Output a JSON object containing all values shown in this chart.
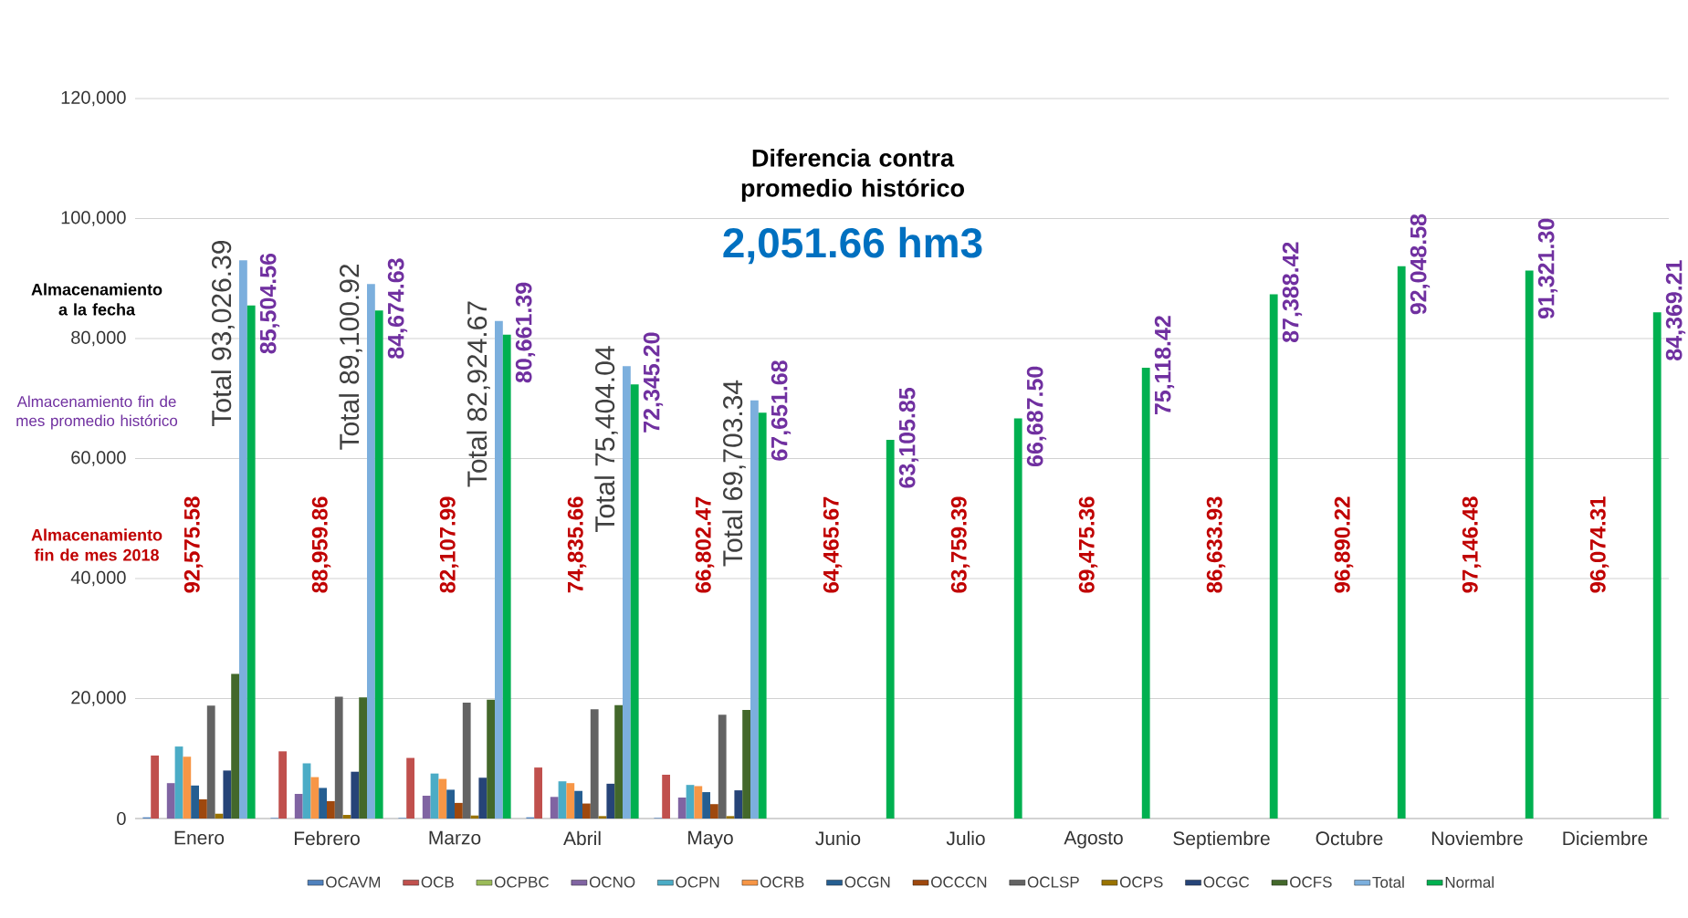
{
  "chart_data": {
    "type": "bar",
    "title": "Diferencia contra promedio histórico",
    "subtitle": "2,051.66 hm3",
    "categories": [
      "Enero",
      "Febrero",
      "Marzo",
      "Abril",
      "Mayo",
      "Junio",
      "Julio",
      "Agosto",
      "Septiembre",
      "Octubre",
      "Noviembre",
      "Diciembre"
    ],
    "series": [
      {
        "name": "OCAVM",
        "color": "#4f81bd",
        "values": [
          200,
          100,
          100,
          200,
          100,
          null,
          null,
          null,
          null,
          null,
          null,
          null
        ]
      },
      {
        "name": "OCB",
        "color": "#c0504d",
        "values": [
          10500,
          11200,
          10100,
          8500,
          7300,
          null,
          null,
          null,
          null,
          null,
          null,
          null
        ]
      },
      {
        "name": "OCPBC",
        "color": "#9bbb59",
        "values": [
          0,
          0,
          0,
          0,
          0,
          null,
          null,
          null,
          null,
          null,
          null,
          null
        ]
      },
      {
        "name": "OCNO",
        "color": "#8064a2",
        "values": [
          5900,
          4100,
          3800,
          3600,
          3500,
          null,
          null,
          null,
          null,
          null,
          null,
          null
        ]
      },
      {
        "name": "OCPN",
        "color": "#4bacc6",
        "values": [
          12000,
          9200,
          7500,
          6200,
          5600,
          null,
          null,
          null,
          null,
          null,
          null,
          null
        ]
      },
      {
        "name": "OCRB",
        "color": "#f79646",
        "values": [
          10300,
          6900,
          6600,
          5900,
          5400,
          null,
          null,
          null,
          null,
          null,
          null,
          null
        ]
      },
      {
        "name": "OCGN",
        "color": "#255e91",
        "values": [
          5500,
          5100,
          4800,
          4600,
          4400,
          null,
          null,
          null,
          null,
          null,
          null,
          null
        ]
      },
      {
        "name": "OCCCN",
        "color": "#9e480e",
        "values": [
          3200,
          2900,
          2600,
          2500,
          2400,
          null,
          null,
          null,
          null,
          null,
          null,
          null
        ]
      },
      {
        "name": "OCLSP",
        "color": "#636363",
        "values": [
          18800,
          20300,
          19300,
          18200,
          17300,
          null,
          null,
          null,
          null,
          null,
          null,
          null
        ]
      },
      {
        "name": "OCPS",
        "color": "#997300",
        "values": [
          800,
          600,
          500,
          400,
          400,
          null,
          null,
          null,
          null,
          null,
          null,
          null
        ]
      },
      {
        "name": "OCGC",
        "color": "#264478",
        "values": [
          8000,
          7800,
          6800,
          5800,
          4700,
          null,
          null,
          null,
          null,
          null,
          null,
          null
        ]
      },
      {
        "name": "OCFS",
        "color": "#43682b",
        "values": [
          24100,
          20200,
          19800,
          18900,
          18100,
          null,
          null,
          null,
          null,
          null,
          null,
          null
        ]
      },
      {
        "name": "Total",
        "color": "#7cafdd",
        "values": [
          93026.39,
          89100.92,
          82924.67,
          75404.04,
          69703.34,
          null,
          null,
          null,
          null,
          null,
          null,
          null
        ],
        "value_labels": [
          "Total 93,026.39",
          "Total 89,100.92",
          "Total 82,924.67",
          "Total 75,404.04",
          "Total 69,703.34",
          null,
          null,
          null,
          null,
          null,
          null,
          null
        ]
      },
      {
        "name": "Normal",
        "color": "#00b050",
        "values": [
          85504.56,
          84674.63,
          80661.39,
          72345.2,
          67651.68,
          63105.85,
          66687.5,
          75118.42,
          87388.42,
          92048.58,
          91321.3,
          84369.21
        ],
        "value_labels": [
          "85,504.56",
          "84,674.63",
          "80,661.39",
          "72,345.20",
          "67,651.68",
          "63,105.85",
          "66,687.50",
          "75,118.42",
          "87,388.42",
          "92,048.58",
          "91,321.30",
          "84,369.21"
        ]
      }
    ],
    "ylim": [
      0,
      120000
    ],
    "yticks": [
      {
        "value": 0,
        "label": "0"
      },
      {
        "value": 20000,
        "label": "20,000"
      },
      {
        "value": 40000,
        "label": "40,000"
      },
      {
        "value": 60000,
        "label": "60,000"
      },
      {
        "value": 80000,
        "label": "80,000"
      },
      {
        "value": 100000,
        "label": "100,000"
      },
      {
        "value": 120000,
        "label": "120,000"
      }
    ],
    "grid": "y",
    "legend": "bottom",
    "annotations": [
      "Almacenamiento a la fecha",
      "Almacenamiento fin de mes promedio histórico",
      "Almacenamiento fin de mes 2018",
      "92,575.58",
      "88,959.86",
      "82,107.99",
      "74,835.66",
      "66,802.47",
      "64,465.67",
      "63,759.39",
      "69,475.36",
      "86,633.93",
      "96,890.22",
      "97,146.48",
      "96,074.31"
    ]
  }
}
